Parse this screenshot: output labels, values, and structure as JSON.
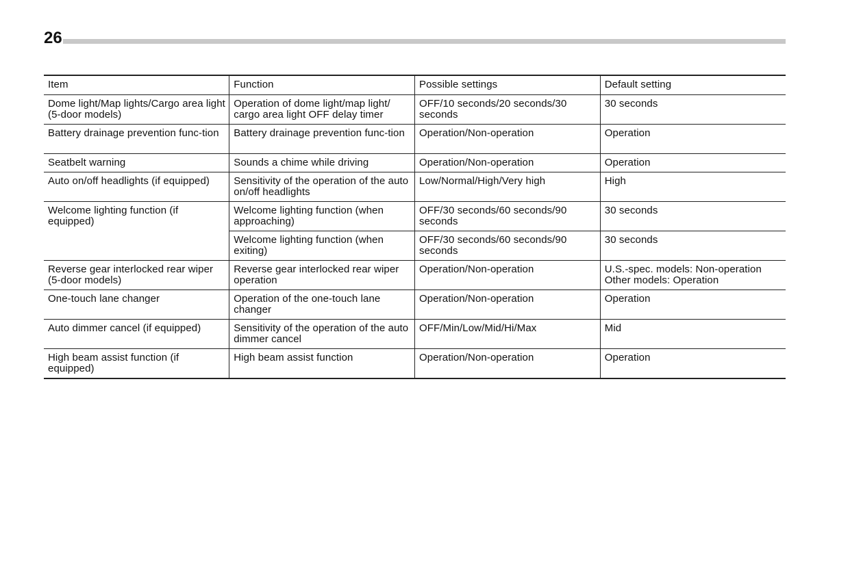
{
  "page_number": "26",
  "table": {
    "headers": [
      "Item",
      "Function",
      "Possible settings",
      "Default setting"
    ],
    "rows": [
      {
        "item": "Dome light/Map lights/Cargo area light (5-door models)",
        "function": "Operation of dome light/map light/ cargo area light OFF delay timer",
        "settings": "OFF/10 seconds/20 seconds/30 seconds",
        "default": "30 seconds"
      },
      {
        "item": "Battery drainage prevention func-tion",
        "function": "Battery drainage prevention func-tion",
        "settings": "Operation/Non-operation",
        "default": "Operation"
      },
      {
        "item": "Seatbelt warning",
        "function": "Sounds a chime while driving",
        "settings": "Operation/Non-operation",
        "default": "Operation"
      },
      {
        "item": "Auto on/off headlights (if equipped)",
        "function": "Sensitivity of the operation of the auto on/off headlights",
        "settings": "Low/Normal/High/Very high",
        "default": "High"
      },
      {
        "item": "Welcome lighting function (if equipped)",
        "function": "Welcome lighting function (when approaching)",
        "settings": "OFF/30 seconds/60 seconds/90 seconds",
        "default": "30 seconds"
      },
      {
        "function": "Welcome lighting function (when exiting)",
        "settings": "OFF/30 seconds/60 seconds/90 seconds",
        "default": "30 seconds"
      },
      {
        "item": "Reverse gear interlocked rear wiper (5-door models)",
        "function": "Reverse gear interlocked rear wiper operation",
        "settings": "Operation/Non-operation",
        "default_lines": [
          "U.S.-spec. models: Non-operation",
          "Other models: Operation"
        ]
      },
      {
        "item": "One-touch lane changer",
        "function": "Operation of the one-touch lane changer",
        "settings": "Operation/Non-operation",
        "default": "Operation"
      },
      {
        "item": "Auto dimmer cancel (if equipped)",
        "function": "Sensitivity of the operation of the auto dimmer cancel",
        "settings": "OFF/Min/Low/Mid/Hi/Max",
        "default": "Mid"
      },
      {
        "item": "High beam assist function (if equipped)",
        "function": "High beam assist function",
        "settings": "Operation/Non-operation",
        "default": "Operation"
      }
    ]
  }
}
